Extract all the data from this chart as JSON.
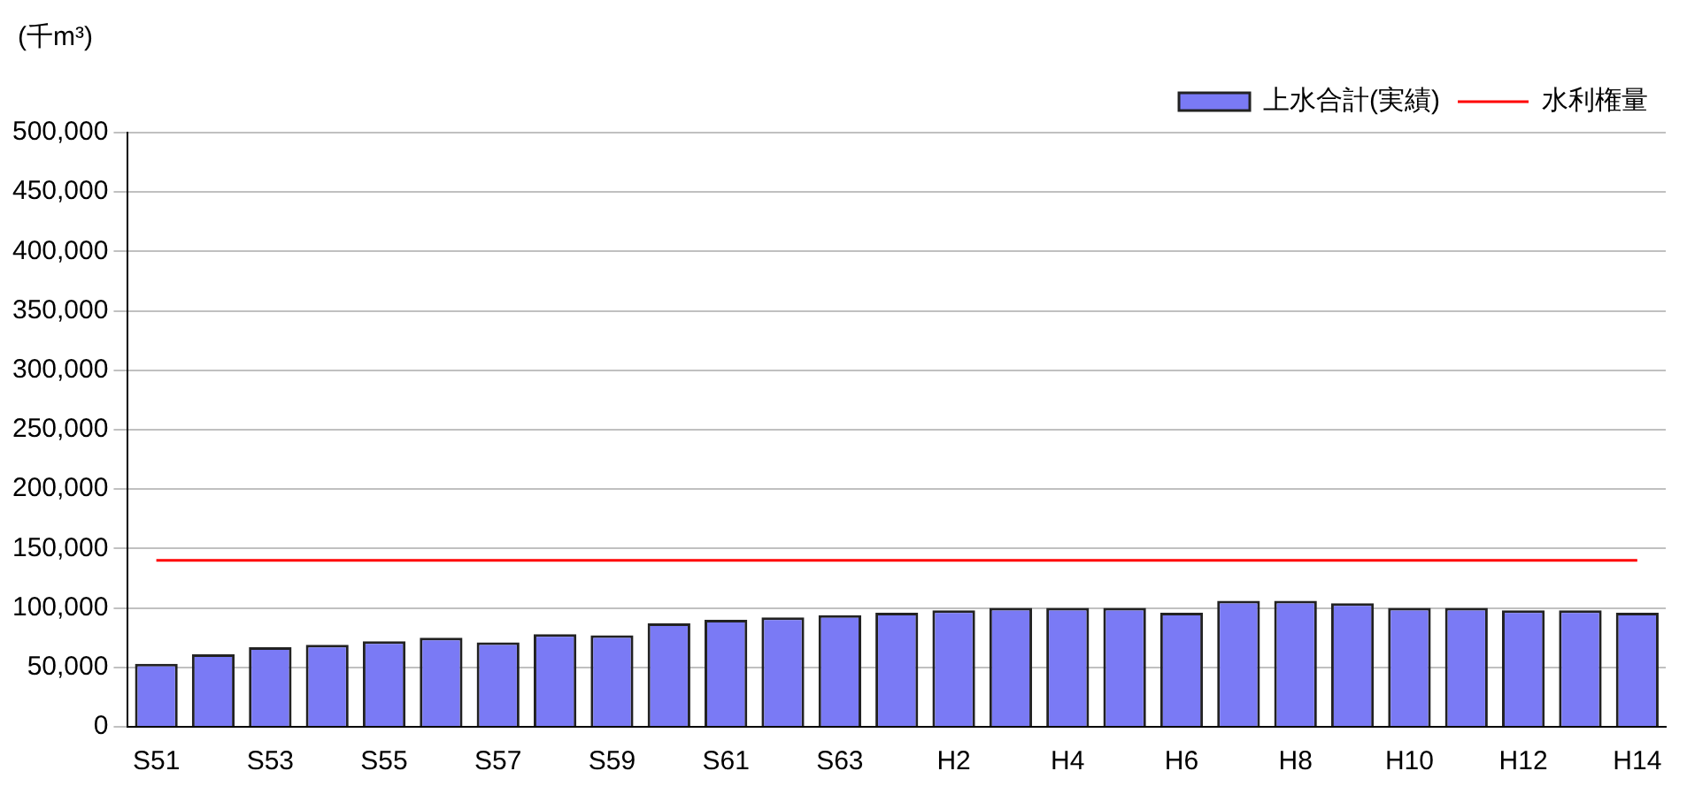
{
  "chart_data": {
    "type": "bar",
    "ylabel": "(千m³)",
    "categories": [
      "S51",
      null,
      "S53",
      null,
      "S55",
      null,
      "S57",
      null,
      "S59",
      null,
      "S61",
      null,
      "S63",
      null,
      "H2",
      null,
      "H4",
      null,
      "H6",
      null,
      "H8",
      null,
      "H10",
      null,
      "H12",
      null,
      "H14"
    ],
    "series": [
      {
        "name": "上水合計(実績)",
        "color": "#7a7af5",
        "values": [
          53000,
          61000,
          67000,
          69000,
          72000,
          75000,
          71000,
          78000,
          77000,
          87000,
          90000,
          92000,
          94000,
          96000,
          98000,
          100000,
          100000,
          100000,
          96000,
          106000,
          106000,
          104000,
          100000,
          100000,
          98000,
          98000,
          96000
        ]
      },
      {
        "name": "水利権量",
        "type": "line",
        "color": "#ff0000",
        "values": [
          140000,
          140000,
          140000,
          140000,
          140000,
          140000,
          140000,
          140000,
          140000,
          140000,
          140000,
          140000,
          140000,
          140000,
          140000,
          140000,
          140000,
          140000,
          140000,
          140000,
          140000,
          140000,
          140000,
          140000,
          140000,
          140000,
          140000
        ]
      }
    ],
    "ylim": [
      0,
      500000
    ],
    "yticks": [
      {
        "value": 0,
        "label": "0"
      },
      {
        "value": 50000,
        "label": "50,000"
      },
      {
        "value": 100000,
        "label": "100,000"
      },
      {
        "value": 150000,
        "label": "150,000"
      },
      {
        "value": 200000,
        "label": "200,000"
      },
      {
        "value": 250000,
        "label": "250,000"
      },
      {
        "value": 300000,
        "label": "300,000"
      },
      {
        "value": 350000,
        "label": "350,000"
      },
      {
        "value": 400000,
        "label": "400,000"
      },
      {
        "value": 450000,
        "label": "450,000"
      },
      {
        "value": 500000,
        "label": "500,000"
      }
    ],
    "grid": "y",
    "legend": "top right"
  }
}
